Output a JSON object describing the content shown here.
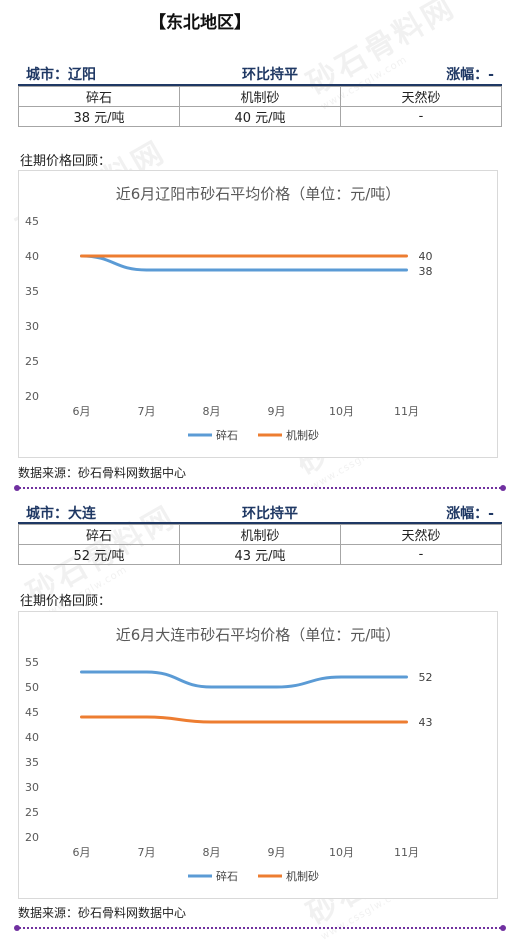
{
  "region_title": "【东北地区】",
  "watermark": {
    "text": "砂石骨料网",
    "url": "www.cssglw.com"
  },
  "review_label": "往期价格回顾：",
  "source_label": "数据来源：砂石骨料网数据中心",
  "sections": [
    {
      "city": "城市：辽阳",
      "trend": "环比持平",
      "change": "涨幅：-",
      "table": {
        "headers": [
          "碎石",
          "机制砂",
          "天然砂"
        ],
        "values": [
          "38 元/吨",
          "40 元/吨",
          "-"
        ]
      }
    },
    {
      "city": "城市：大连",
      "trend": "环比持平",
      "change": "涨幅：-",
      "table": {
        "headers": [
          "碎石",
          "机制砂",
          "天然砂"
        ],
        "values": [
          "52 元/吨",
          "43 元/吨",
          "-"
        ]
      }
    }
  ],
  "chart_data": [
    {
      "type": "line",
      "title": "近6月辽阳市砂石平均价格（单位：元/吨）",
      "categories": [
        "6月",
        "7月",
        "8月",
        "9月",
        "10月",
        "11月"
      ],
      "ylim": [
        20,
        45
      ],
      "yticks": [
        20,
        25,
        30,
        35,
        40,
        45
      ],
      "grid": false,
      "legend": "bottom",
      "series": [
        {
          "name": "碎石",
          "values": [
            40,
            38,
            38,
            38,
            38,
            38
          ],
          "color": "#5b9bd5",
          "end_label": "38"
        },
        {
          "name": "机制砂",
          "values": [
            40,
            40,
            40,
            40,
            40,
            40
          ],
          "color": "#ed7d31",
          "end_label": "40"
        }
      ]
    },
    {
      "type": "line",
      "title": "近6月大连市砂石平均价格（单位：元/吨）",
      "categories": [
        "6月",
        "7月",
        "8月",
        "9月",
        "10月",
        "11月"
      ],
      "ylim": [
        20,
        55
      ],
      "yticks": [
        20,
        25,
        30,
        35,
        40,
        45,
        50,
        55
      ],
      "grid": false,
      "legend": "bottom",
      "series": [
        {
          "name": "碎石",
          "values": [
            53,
            53,
            50,
            50,
            52,
            52
          ],
          "color": "#5b9bd5",
          "end_label": "52"
        },
        {
          "name": "机制砂",
          "values": [
            44,
            44,
            43,
            43,
            43,
            43
          ],
          "color": "#ed7d31",
          "end_label": "43"
        }
      ]
    }
  ]
}
